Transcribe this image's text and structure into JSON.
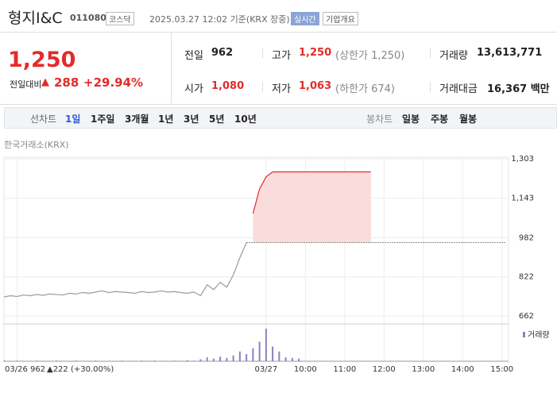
{
  "header": {
    "name": "형지I&C",
    "code": "011080",
    "market": "코스닥",
    "timestamp": "2025.03.27 12:02 기준(KRX 장중)",
    "realtime": "실시간",
    "company_info": "기업개요"
  },
  "price": {
    "current": "1,250",
    "change_label": "전일대비",
    "change": "288",
    "change_pct": "+29.94%"
  },
  "stats": [
    {
      "label": "전일",
      "value": "962"
    },
    {
      "label": "고가",
      "value": "1,250",
      "note": "(상한가 1,250)"
    },
    {
      "label": "거래량",
      "value": "13,613,771"
    },
    {
      "label": "시가",
      "value": "1,080"
    },
    {
      "label": "저가",
      "value": "1,063",
      "note": "(하한가 674)"
    },
    {
      "label": "거래대금",
      "value": "16,367 백만"
    }
  ],
  "tabs": {
    "line_label": "선차트",
    "line_periods": [
      "1일",
      "1주일",
      "3개월",
      "1년",
      "3년",
      "5년",
      "10년"
    ],
    "candle_label": "봉차트",
    "candle_periods": [
      "일봉",
      "주봉",
      "월봉"
    ]
  },
  "chart_data": {
    "type": "line",
    "source": "한국거래소(KRX)",
    "x": [
      0,
      1,
      2,
      3,
      4,
      5,
      6,
      7,
      8,
      9,
      10,
      11,
      12,
      13,
      14,
      15,
      16,
      17,
      18,
      19,
      20,
      21,
      22,
      23,
      24,
      25,
      26,
      27,
      28,
      29,
      30,
      31,
      32,
      33,
      34,
      35,
      36,
      37,
      38,
      39,
      40,
      41,
      42,
      43,
      44,
      45,
      46,
      47,
      48,
      49,
      50,
      51,
      52,
      53,
      54,
      55,
      56
    ],
    "series": [
      {
        "color": "#9a9a9a",
        "values": [
          740,
          745,
          742,
          748,
          745,
          750,
          747,
          752,
          750,
          748,
          755,
          752,
          758,
          755,
          760,
          765,
          758,
          762,
          760,
          758,
          755,
          762,
          758,
          760,
          765,
          760,
          762,
          758,
          755,
          760,
          745,
          790,
          770,
          800,
          780,
          830,
          900,
          962,
          null,
          null,
          null,
          null,
          null,
          null,
          null,
          null,
          null,
          null,
          null,
          null,
          null,
          null,
          null,
          null,
          null,
          null,
          null
        ]
      },
      {
        "color": "#e52a2a",
        "values": [
          null,
          null,
          null,
          null,
          null,
          null,
          null,
          null,
          null,
          null,
          null,
          null,
          null,
          null,
          null,
          null,
          null,
          null,
          null,
          null,
          null,
          null,
          null,
          null,
          null,
          null,
          null,
          null,
          null,
          null,
          null,
          null,
          null,
          null,
          null,
          null,
          null,
          null,
          1080,
          1180,
          1230,
          1250,
          1250,
          1250,
          1250,
          1250,
          1250,
          1250,
          1250,
          1250,
          1250,
          1250,
          1250,
          1250,
          1250,
          1250,
          1250
        ]
      }
    ],
    "reference": 962,
    "area_color": "#fbdcdc",
    "xlim": [
      0,
      77
    ],
    "xticks": [
      {
        "value": 2,
        "label": "03/26"
      },
      {
        "value": 40,
        "label": "03/27"
      },
      {
        "value": 46,
        "label": "10:00"
      },
      {
        "value": 52,
        "label": "11:00"
      },
      {
        "value": 58,
        "label": "12:00"
      },
      {
        "value": 64,
        "label": "13:00"
      },
      {
        "value": 70,
        "label": "14:00"
      },
      {
        "value": 76,
        "label": "15:00"
      }
    ],
    "ylim": [
      630,
      1310
    ],
    "yticks": [
      662,
      822,
      982,
      {
        "value": 1143,
        "label": "1,143"
      },
      {
        "value": 1303,
        "label": "1,303"
      }
    ],
    "grid": true,
    "volume": {
      "label": "거래량",
      "color": "#8f7fbf",
      "ylim": [
        0,
        100
      ],
      "values": [
        2,
        1,
        2,
        1,
        1,
        2,
        1,
        1,
        2,
        1,
        1,
        2,
        1,
        1,
        2,
        1,
        1,
        1,
        2,
        1,
        1,
        2,
        1,
        2,
        1,
        1,
        2,
        1,
        3,
        2,
        6,
        12,
        8,
        14,
        10,
        18,
        30,
        22,
        40,
        60,
        100,
        45,
        30,
        12,
        10,
        8,
        null,
        null,
        null,
        null,
        null,
        null,
        null,
        null,
        null,
        null,
        null
      ]
    },
    "footer": {
      "date": "03/26",
      "close": "962",
      "change": "▲222 (+30.00%)"
    }
  }
}
